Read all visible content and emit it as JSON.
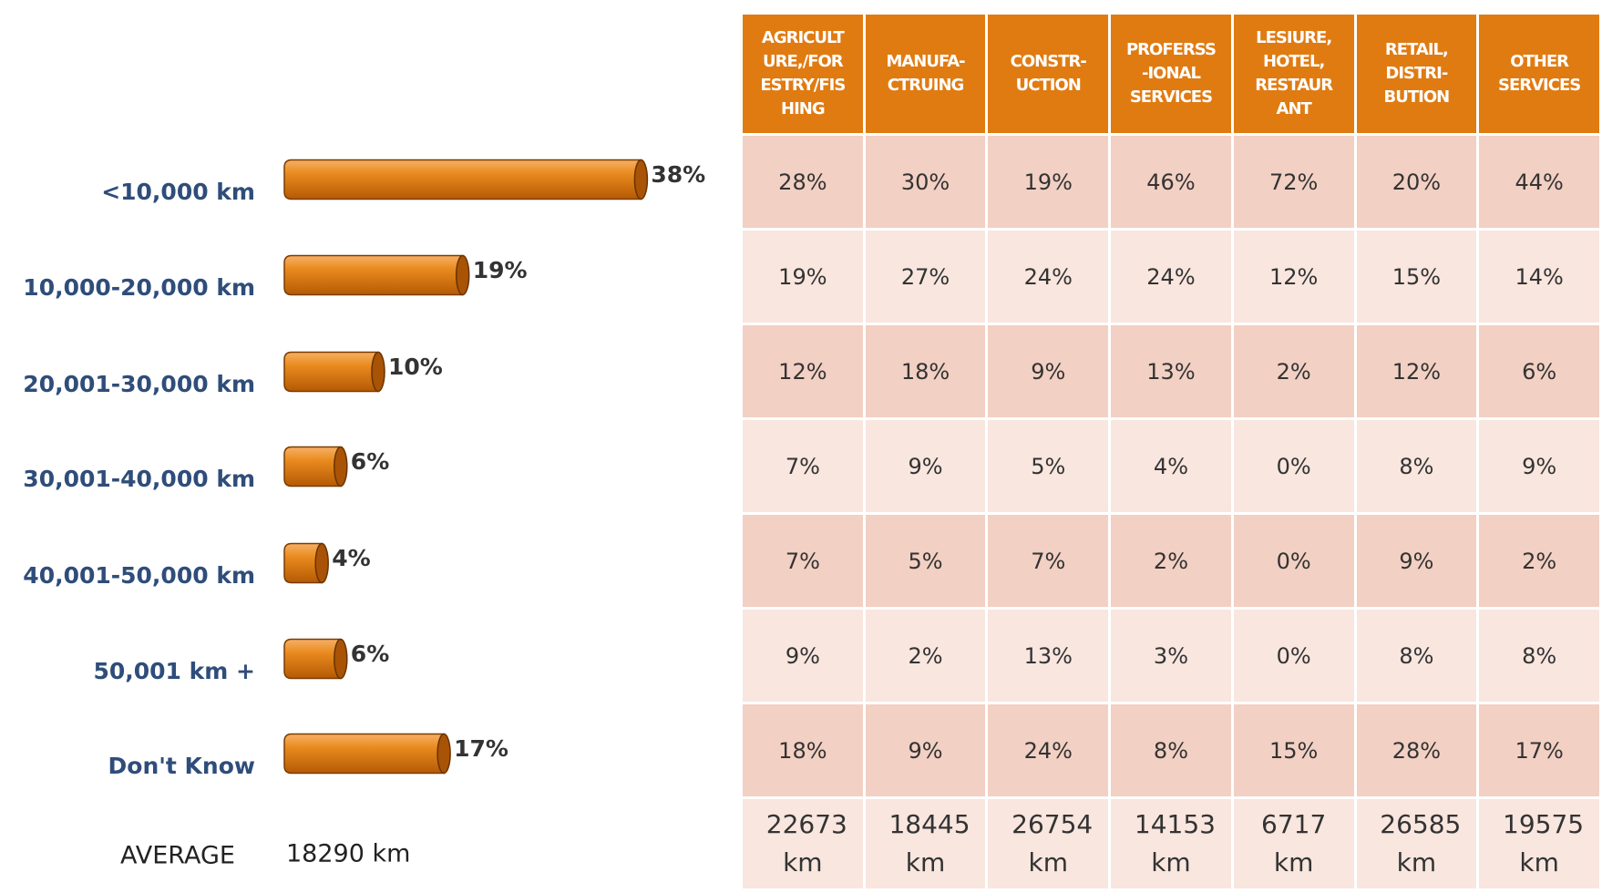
{
  "chart_data": {
    "type": "bar",
    "categories": [
      "<10,000 km",
      "10,000-20,000 km",
      "20,001-30,000 km",
      "30,001-40,000 km",
      "40,001-50,000 km",
      "50,001 km +",
      "Don't Know"
    ],
    "values": [
      38,
      19,
      10,
      6,
      4,
      6,
      17
    ],
    "value_labels": [
      "38%",
      "19%",
      "10%",
      "6%",
      "4%",
      "6%",
      "17%"
    ],
    "color": "#e07b12",
    "average_label": "AVERAGE",
    "average": "18290 km"
  },
  "table": {
    "headers": [
      [
        "AGRICULT",
        "URE,/FOR",
        "ESTRY/FIS",
        "HING"
      ],
      [
        "MANUFA-",
        "CTRUING"
      ],
      [
        "CONSTR-",
        "UCTION"
      ],
      [
        "PROFERSS",
        "-IONAL",
        "SERVICES"
      ],
      [
        "LESIURE,",
        "HOTEL,",
        "RESTAUR",
        "ANT"
      ],
      [
        "RETAIL,",
        "DISTRI-",
        "BUTION"
      ],
      [
        "OTHER",
        "SERVICES"
      ]
    ],
    "rows": [
      [
        "28%",
        "30%",
        "19%",
        "46%",
        "72%",
        "20%",
        "44%"
      ],
      [
        "19%",
        "27%",
        "24%",
        "24%",
        "12%",
        "15%",
        "14%"
      ],
      [
        "12%",
        "18%",
        "9%",
        "13%",
        "2%",
        "12%",
        "6%"
      ],
      [
        "7%",
        "9%",
        "5%",
        "4%",
        "0%",
        "8%",
        "9%"
      ],
      [
        "7%",
        "5%",
        "7%",
        "2%",
        "0%",
        "9%",
        "2%"
      ],
      [
        "9%",
        "2%",
        "13%",
        "3%",
        "0%",
        "8%",
        "8%"
      ],
      [
        "18%",
        "9%",
        "24%",
        "8%",
        "15%",
        "28%",
        "17%"
      ]
    ],
    "averages": [
      "22673 km",
      "18445 km",
      "26754 km",
      "14153 km",
      "6717 km",
      "26585 km",
      "19575 km"
    ]
  }
}
